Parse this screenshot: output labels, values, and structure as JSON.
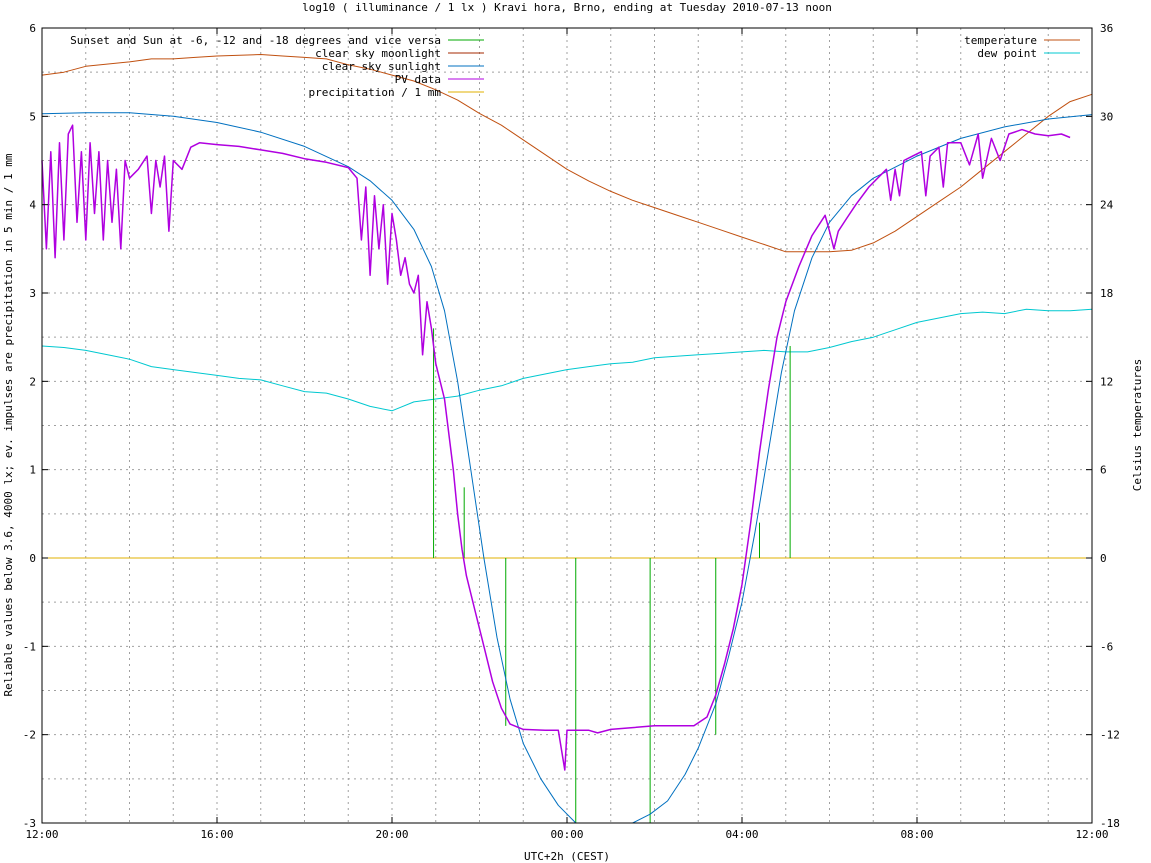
{
  "chart_data": {
    "type": "line",
    "title": "log10 ( illuminance / 1 lx ) Kravi hora, Brno, ending at Tuesday 2010-07-13 noon",
    "xlabel": "UTC+2h (CEST)",
    "ylabel": "Reliable values below 3.6, 4000 lx; ev. impulses are precipitation in 5 min / 1 mm",
    "y2label": "Celsius temperatures",
    "x_unit": "hours since 12:00 (UTC+2h)",
    "xlim": [
      0,
      24
    ],
    "ylim": [
      -3,
      6
    ],
    "y2lim": [
      -18,
      36
    ],
    "x_ticks": [
      {
        "v": 0,
        "label": "12:00"
      },
      {
        "v": 4,
        "label": "16:00"
      },
      {
        "v": 8,
        "label": "20:00"
      },
      {
        "v": 12,
        "label": "00:00"
      },
      {
        "v": 16,
        "label": "04:00"
      },
      {
        "v": 20,
        "label": "08:00"
      },
      {
        "v": 24,
        "label": "12:00"
      }
    ],
    "y_ticks": [
      {
        "v": -3,
        "label": "-3"
      },
      {
        "v": -2,
        "label": "-2"
      },
      {
        "v": -1,
        "label": "-1"
      },
      {
        "v": 0,
        "label": "0"
      },
      {
        "v": 1,
        "label": "1"
      },
      {
        "v": 2,
        "label": "2"
      },
      {
        "v": 3,
        "label": "3"
      },
      {
        "v": 4,
        "label": "4"
      },
      {
        "v": 5,
        "label": "5"
      },
      {
        "v": 6,
        "label": "6"
      }
    ],
    "y2_ticks": [
      {
        "v": -18,
        "label": "-18"
      },
      {
        "v": -12,
        "label": "-12"
      },
      {
        "v": -6,
        "label": "-6"
      },
      {
        "v": 0,
        "label": "0"
      },
      {
        "v": 6,
        "label": "6"
      },
      {
        "v": 12,
        "label": "12"
      },
      {
        "v": 18,
        "label": "18"
      },
      {
        "v": 24,
        "label": "24"
      },
      {
        "v": 30,
        "label": "30"
      },
      {
        "v": 36,
        "label": "36"
      }
    ],
    "grid": true,
    "legend_left": [
      {
        "name": "Sunset and Sun at -6, -12 and -18 degrees and vice versa",
        "color": "#00aa00"
      },
      {
        "name": "clear sky moonlight",
        "color": "#a52a00"
      },
      {
        "name": "clear sky sunlight",
        "color": "#0070c0"
      },
      {
        "name": "PV data",
        "color": "#b000e0"
      },
      {
        "name": "precipitation / 1 mm",
        "color": "#e0b000"
      }
    ],
    "legend_right": [
      {
        "name": "temperature",
        "color": "#c05010"
      },
      {
        "name": "dew point",
        "color": "#00c8d0"
      }
    ],
    "sun_markers": [
      {
        "x": 8.95,
        "y_from": 0,
        "y_to": 2.6
      },
      {
        "x": 9.65,
        "y_from": 0,
        "y_to": 0.8
      },
      {
        "x": 10.6,
        "y_from": 0,
        "y_to": -1.9
      },
      {
        "x": 12.2,
        "y_from": 0,
        "y_to": -3
      },
      {
        "x": 13.9,
        "y_from": 0,
        "y_to": -3
      },
      {
        "x": 15.4,
        "y_from": 0,
        "y_to": -2.0
      },
      {
        "x": 16.4,
        "y_from": 0,
        "y_to": 0.4
      },
      {
        "x": 17.1,
        "y_from": 0,
        "y_to": 2.4
      }
    ],
    "clear_sky_sunlight": [
      [
        0,
        5.03
      ],
      [
        1,
        5.04
      ],
      [
        2,
        5.04
      ],
      [
        3,
        5.0
      ],
      [
        4,
        4.93
      ],
      [
        5,
        4.82
      ],
      [
        6,
        4.66
      ],
      [
        7,
        4.43
      ],
      [
        7.5,
        4.27
      ],
      [
        8,
        4.05
      ],
      [
        8.5,
        3.72
      ],
      [
        8.9,
        3.3
      ],
      [
        9.2,
        2.8
      ],
      [
        9.5,
        2.0
      ],
      [
        9.8,
        1.0
      ],
      [
        10.1,
        0.0
      ],
      [
        10.4,
        -0.9
      ],
      [
        10.7,
        -1.6
      ],
      [
        11.0,
        -2.1
      ],
      [
        11.4,
        -2.5
      ],
      [
        11.8,
        -2.8
      ],
      [
        12.2,
        -3.0
      ],
      [
        13.5,
        -3.0
      ],
      [
        13.9,
        -2.9
      ],
      [
        14.3,
        -2.75
      ],
      [
        14.7,
        -2.45
      ],
      [
        15.0,
        -2.15
      ],
      [
        15.4,
        -1.65
      ],
      [
        15.7,
        -1.1
      ],
      [
        16.0,
        -0.5
      ],
      [
        16.3,
        0.3
      ],
      [
        16.6,
        1.2
      ],
      [
        16.9,
        2.1
      ],
      [
        17.2,
        2.8
      ],
      [
        17.6,
        3.4
      ],
      [
        18.0,
        3.8
      ],
      [
        18.5,
        4.1
      ],
      [
        19,
        4.3
      ],
      [
        20,
        4.55
      ],
      [
        21,
        4.75
      ],
      [
        22,
        4.88
      ],
      [
        23,
        4.97
      ],
      [
        24,
        5.02
      ]
    ],
    "pv_data": [
      [
        0,
        4.5
      ],
      [
        0.1,
        3.5
      ],
      [
        0.2,
        4.6
      ],
      [
        0.3,
        3.4
      ],
      [
        0.4,
        4.7
      ],
      [
        0.5,
        3.6
      ],
      [
        0.6,
        4.8
      ],
      [
        0.7,
        4.9
      ],
      [
        0.8,
        3.8
      ],
      [
        0.9,
        4.6
      ],
      [
        1.0,
        3.6
      ],
      [
        1.1,
        4.7
      ],
      [
        1.2,
        3.9
      ],
      [
        1.3,
        4.6
      ],
      [
        1.4,
        3.6
      ],
      [
        1.5,
        4.5
      ],
      [
        1.6,
        3.8
      ],
      [
        1.7,
        4.4
      ],
      [
        1.8,
        3.5
      ],
      [
        1.9,
        4.5
      ],
      [
        2.0,
        4.3
      ],
      [
        2.2,
        4.4
      ],
      [
        2.4,
        4.55
      ],
      [
        2.5,
        3.9
      ],
      [
        2.6,
        4.5
      ],
      [
        2.7,
        4.2
      ],
      [
        2.8,
        4.55
      ],
      [
        2.9,
        3.7
      ],
      [
        3.0,
        4.5
      ],
      [
        3.2,
        4.4
      ],
      [
        3.4,
        4.65
      ],
      [
        3.6,
        4.7
      ],
      [
        4.0,
        4.68
      ],
      [
        4.5,
        4.66
      ],
      [
        5.0,
        4.62
      ],
      [
        5.5,
        4.58
      ],
      [
        6.0,
        4.52
      ],
      [
        6.5,
        4.48
      ],
      [
        7.0,
        4.42
      ],
      [
        7.2,
        4.3
      ],
      [
        7.3,
        3.6
      ],
      [
        7.4,
        4.2
      ],
      [
        7.5,
        3.2
      ],
      [
        7.6,
        4.1
      ],
      [
        7.7,
        3.5
      ],
      [
        7.8,
        4.0
      ],
      [
        7.9,
        3.1
      ],
      [
        8.0,
        3.9
      ],
      [
        8.1,
        3.6
      ],
      [
        8.2,
        3.2
      ],
      [
        8.3,
        3.4
      ],
      [
        8.4,
        3.1
      ],
      [
        8.5,
        3.0
      ],
      [
        8.6,
        3.2
      ],
      [
        8.7,
        2.3
      ],
      [
        8.8,
        2.9
      ],
      [
        8.9,
        2.6
      ],
      [
        9.0,
        2.2
      ],
      [
        9.2,
        1.8
      ],
      [
        9.4,
        1.0
      ],
      [
        9.5,
        0.5
      ],
      [
        9.6,
        0.1
      ],
      [
        9.7,
        -0.2
      ],
      [
        9.9,
        -0.6
      ],
      [
        10.1,
        -1.0
      ],
      [
        10.3,
        -1.4
      ],
      [
        10.5,
        -1.7
      ],
      [
        10.7,
        -1.88
      ],
      [
        11.0,
        -1.94
      ],
      [
        11.5,
        -1.95
      ],
      [
        11.8,
        -1.95
      ],
      [
        11.95,
        -2.4
      ],
      [
        12.0,
        -1.95
      ],
      [
        12.5,
        -1.95
      ],
      [
        12.7,
        -1.98
      ],
      [
        13.0,
        -1.94
      ],
      [
        13.5,
        -1.92
      ],
      [
        14.0,
        -1.9
      ],
      [
        14.5,
        -1.9
      ],
      [
        14.9,
        -1.9
      ],
      [
        15.2,
        -1.8
      ],
      [
        15.4,
        -1.55
      ],
      [
        15.6,
        -1.2
      ],
      [
        15.8,
        -0.8
      ],
      [
        16.0,
        -0.3
      ],
      [
        16.2,
        0.4
      ],
      [
        16.4,
        1.2
      ],
      [
        16.6,
        1.9
      ],
      [
        16.8,
        2.5
      ],
      [
        17.0,
        2.9
      ],
      [
        17.3,
        3.3
      ],
      [
        17.6,
        3.65
      ],
      [
        17.9,
        3.88
      ],
      [
        18.0,
        3.7
      ],
      [
        18.1,
        3.5
      ],
      [
        18.2,
        3.7
      ],
      [
        18.4,
        3.85
      ],
      [
        18.6,
        4.0
      ],
      [
        18.9,
        4.2
      ],
      [
        19.1,
        4.3
      ],
      [
        19.3,
        4.4
      ],
      [
        19.4,
        4.05
      ],
      [
        19.5,
        4.4
      ],
      [
        19.6,
        4.1
      ],
      [
        19.7,
        4.5
      ],
      [
        19.9,
        4.55
      ],
      [
        20.1,
        4.6
      ],
      [
        20.2,
        4.1
      ],
      [
        20.3,
        4.55
      ],
      [
        20.5,
        4.65
      ],
      [
        20.6,
        4.2
      ],
      [
        20.7,
        4.7
      ],
      [
        21.0,
        4.7
      ],
      [
        21.2,
        4.45
      ],
      [
        21.4,
        4.8
      ],
      [
        21.5,
        4.3
      ],
      [
        21.7,
        4.75
      ],
      [
        21.9,
        4.5
      ],
      [
        22.1,
        4.8
      ],
      [
        22.4,
        4.85
      ],
      [
        22.7,
        4.8
      ],
      [
        23.0,
        4.78
      ],
      [
        23.3,
        4.8
      ],
      [
        23.5,
        4.76
      ]
    ],
    "temperature": [
      [
        0,
        32.8
      ],
      [
        0.5,
        33.0
      ],
      [
        1,
        33.4
      ],
      [
        2,
        33.7
      ],
      [
        2.5,
        33.9
      ],
      [
        3,
        33.9
      ],
      [
        3.5,
        34.0
      ],
      [
        4,
        34.1
      ],
      [
        5,
        34.2
      ],
      [
        5.5,
        34.1
      ],
      [
        6,
        34.0
      ],
      [
        6.5,
        33.9
      ],
      [
        7,
        33.5
      ],
      [
        7.5,
        33.2
      ],
      [
        8,
        32.8
      ],
      [
        8.5,
        32.4
      ],
      [
        9,
        31.8
      ],
      [
        9.5,
        31.1
      ],
      [
        10,
        30.2
      ],
      [
        10.5,
        29.4
      ],
      [
        11,
        28.4
      ],
      [
        11.5,
        27.4
      ],
      [
        12,
        26.4
      ],
      [
        12.5,
        25.6
      ],
      [
        13,
        24.9
      ],
      [
        13.5,
        24.3
      ],
      [
        14,
        23.8
      ],
      [
        14.5,
        23.3
      ],
      [
        15,
        22.8
      ],
      [
        15.5,
        22.3
      ],
      [
        16,
        21.8
      ],
      [
        16.5,
        21.3
      ],
      [
        17,
        20.8
      ],
      [
        17.5,
        20.8
      ],
      [
        18,
        20.8
      ],
      [
        18.5,
        20.9
      ],
      [
        19,
        21.4
      ],
      [
        19.5,
        22.2
      ],
      [
        20,
        23.2
      ],
      [
        20.5,
        24.2
      ],
      [
        21,
        25.2
      ],
      [
        21.5,
        26.4
      ],
      [
        22,
        27.6
      ],
      [
        22.5,
        28.8
      ],
      [
        23,
        30.0
      ],
      [
        23.5,
        31.0
      ],
      [
        24,
        31.5
      ]
    ],
    "dew_point": [
      [
        0,
        14.4
      ],
      [
        0.5,
        14.3
      ],
      [
        1,
        14.1
      ],
      [
        1.5,
        13.8
      ],
      [
        2,
        13.5
      ],
      [
        2.5,
        13.0
      ],
      [
        3,
        12.8
      ],
      [
        3.5,
        12.6
      ],
      [
        4,
        12.4
      ],
      [
        4.5,
        12.2
      ],
      [
        5,
        12.1
      ],
      [
        5.5,
        11.7
      ],
      [
        6,
        11.3
      ],
      [
        6.5,
        11.2
      ],
      [
        7,
        10.8
      ],
      [
        7.5,
        10.3
      ],
      [
        8,
        10.0
      ],
      [
        8.5,
        10.6
      ],
      [
        9,
        10.8
      ],
      [
        9.5,
        11.0
      ],
      [
        10,
        11.4
      ],
      [
        10.5,
        11.7
      ],
      [
        11,
        12.2
      ],
      [
        11.5,
        12.5
      ],
      [
        12,
        12.8
      ],
      [
        12.5,
        13.0
      ],
      [
        13,
        13.2
      ],
      [
        13.5,
        13.3
      ],
      [
        14,
        13.6
      ],
      [
        14.5,
        13.7
      ],
      [
        15,
        13.8
      ],
      [
        15.5,
        13.9
      ],
      [
        16,
        14.0
      ],
      [
        16.5,
        14.1
      ],
      [
        17,
        14.0
      ],
      [
        17.5,
        14.0
      ],
      [
        18,
        14.3
      ],
      [
        18.5,
        14.7
      ],
      [
        19,
        15.0
      ],
      [
        19.5,
        15.5
      ],
      [
        20,
        16.0
      ],
      [
        20.5,
        16.3
      ],
      [
        21,
        16.6
      ],
      [
        21.5,
        16.7
      ],
      [
        22,
        16.6
      ],
      [
        22.5,
        16.9
      ],
      [
        23,
        16.8
      ],
      [
        23.5,
        16.8
      ],
      [
        24,
        16.9
      ]
    ],
    "precipitation": [
      [
        0,
        0
      ],
      [
        24,
        0
      ]
    ]
  }
}
